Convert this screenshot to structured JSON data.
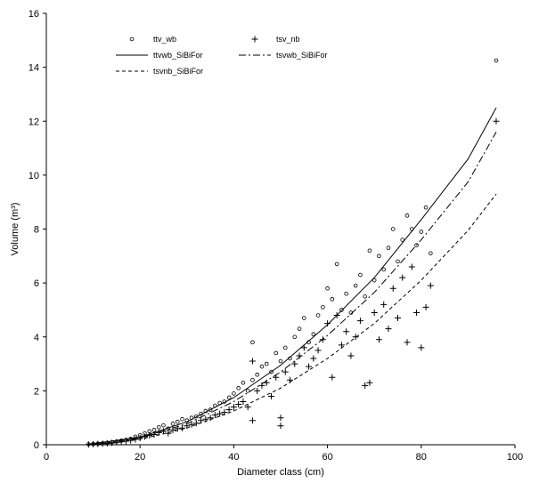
{
  "chart_data": {
    "type": "scatter",
    "xlabel": "Diameter class (cm)",
    "ylabel": "Volume (m³)",
    "xlim": [
      0,
      100
    ],
    "ylim": [
      0,
      16
    ],
    "xticks": [
      0,
      20,
      40,
      60,
      80,
      100
    ],
    "yticks": [
      0,
      2,
      4,
      6,
      8,
      10,
      12,
      14,
      16
    ],
    "grid": false,
    "legend_position": "top-left",
    "series": [
      {
        "name": "ttv_wb",
        "kind": "points",
        "marker": "circle",
        "points": [
          [
            9,
            0.02
          ],
          [
            10,
            0.03
          ],
          [
            11,
            0.04
          ],
          [
            12,
            0.05
          ],
          [
            13,
            0.07
          ],
          [
            14,
            0.09
          ],
          [
            15,
            0.12
          ],
          [
            16,
            0.15
          ],
          [
            17,
            0.18
          ],
          [
            18,
            0.22
          ],
          [
            19,
            0.3
          ],
          [
            20,
            0.35
          ],
          [
            21,
            0.42
          ],
          [
            22,
            0.5
          ],
          [
            23,
            0.55
          ],
          [
            24,
            0.65
          ],
          [
            25,
            0.72
          ],
          [
            26,
            0.6
          ],
          [
            27,
            0.78
          ],
          [
            28,
            0.85
          ],
          [
            29,
            0.95
          ],
          [
            30,
            0.9
          ],
          [
            31,
            1.0
          ],
          [
            32,
            1.05
          ],
          [
            33,
            1.15
          ],
          [
            34,
            1.25
          ],
          [
            35,
            1.3
          ],
          [
            36,
            1.45
          ],
          [
            37,
            1.55
          ],
          [
            38,
            1.6
          ],
          [
            39,
            1.75
          ],
          [
            40,
            1.9
          ],
          [
            41,
            2.1
          ],
          [
            42,
            2.3
          ],
          [
            43,
            2.0
          ],
          [
            44,
            3.8
          ],
          [
            44,
            2.4
          ],
          [
            45,
            2.6
          ],
          [
            46,
            2.9
          ],
          [
            47,
            3.0
          ],
          [
            48,
            2.7
          ],
          [
            49,
            3.4
          ],
          [
            50,
            3.1
          ],
          [
            51,
            3.6
          ],
          [
            52,
            3.2
          ],
          [
            53,
            4.0
          ],
          [
            54,
            4.3
          ],
          [
            55,
            4.7
          ],
          [
            56,
            3.8
          ],
          [
            57,
            4.1
          ],
          [
            58,
            4.8
          ],
          [
            59,
            5.1
          ],
          [
            60,
            5.8
          ],
          [
            61,
            5.4
          ],
          [
            62,
            6.7
          ],
          [
            63,
            5.0
          ],
          [
            64,
            5.6
          ],
          [
            65,
            4.9
          ],
          [
            66,
            5.9
          ],
          [
            67,
            6.3
          ],
          [
            68,
            5.5
          ],
          [
            69,
            7.2
          ],
          [
            70,
            6.1
          ],
          [
            71,
            7.0
          ],
          [
            72,
            6.5
          ],
          [
            73,
            7.3
          ],
          [
            74,
            8.0
          ],
          [
            75,
            6.8
          ],
          [
            76,
            7.6
          ],
          [
            77,
            8.5
          ],
          [
            78,
            8.0
          ],
          [
            79,
            7.4
          ],
          [
            80,
            7.9
          ],
          [
            81,
            8.8
          ],
          [
            82,
            7.1
          ],
          [
            96,
            14.25
          ]
        ]
      },
      {
        "name": "tsv_nb",
        "kind": "points",
        "marker": "plus",
        "points": [
          [
            9,
            0.01
          ],
          [
            10,
            0.02
          ],
          [
            11,
            0.03
          ],
          [
            12,
            0.04
          ],
          [
            13,
            0.05
          ],
          [
            14,
            0.07
          ],
          [
            15,
            0.09
          ],
          [
            16,
            0.11
          ],
          [
            17,
            0.13
          ],
          [
            18,
            0.16
          ],
          [
            19,
            0.2
          ],
          [
            20,
            0.25
          ],
          [
            21,
            0.3
          ],
          [
            22,
            0.35
          ],
          [
            23,
            0.38
          ],
          [
            24,
            0.45
          ],
          [
            25,
            0.5
          ],
          [
            26,
            0.42
          ],
          [
            27,
            0.55
          ],
          [
            28,
            0.6
          ],
          [
            29,
            0.62
          ],
          [
            30,
            0.7
          ],
          [
            31,
            0.75
          ],
          [
            32,
            0.8
          ],
          [
            33,
            0.9
          ],
          [
            34,
            0.95
          ],
          [
            35,
            1.0
          ],
          [
            36,
            1.1
          ],
          [
            37,
            1.15
          ],
          [
            38,
            1.2
          ],
          [
            39,
            1.3
          ],
          [
            40,
            1.4
          ],
          [
            41,
            1.5
          ],
          [
            42,
            1.6
          ],
          [
            43,
            1.4
          ],
          [
            44,
            3.1
          ],
          [
            44,
            0.9
          ],
          [
            45,
            2.0
          ],
          [
            46,
            2.2
          ],
          [
            47,
            2.3
          ],
          [
            48,
            1.8
          ],
          [
            49,
            2.5
          ],
          [
            50,
            0.7
          ],
          [
            50,
            1.0
          ],
          [
            51,
            2.7
          ],
          [
            52,
            2.4
          ],
          [
            53,
            3.0
          ],
          [
            54,
            3.3
          ],
          [
            55,
            3.6
          ],
          [
            56,
            2.9
          ],
          [
            57,
            3.2
          ],
          [
            58,
            3.5
          ],
          [
            59,
            3.9
          ],
          [
            60,
            4.5
          ],
          [
            61,
            2.5
          ],
          [
            62,
            4.8
          ],
          [
            63,
            3.7
          ],
          [
            64,
            4.2
          ],
          [
            65,
            3.3
          ],
          [
            66,
            4.0
          ],
          [
            67,
            4.6
          ],
          [
            68,
            2.2
          ],
          [
            69,
            2.3
          ],
          [
            70,
            4.9
          ],
          [
            71,
            3.9
          ],
          [
            72,
            5.2
          ],
          [
            73,
            4.3
          ],
          [
            74,
            5.8
          ],
          [
            75,
            4.7
          ],
          [
            76,
            6.2
          ],
          [
            77,
            3.8
          ],
          [
            78,
            6.6
          ],
          [
            79,
            4.9
          ],
          [
            80,
            3.6
          ],
          [
            81,
            5.1
          ],
          [
            82,
            5.9
          ],
          [
            96,
            12.0
          ]
        ]
      },
      {
        "name": "ttvwb_SiBiFor",
        "kind": "line",
        "dash": "solid",
        "points": [
          [
            9,
            0.02
          ],
          [
            20,
            0.28
          ],
          [
            30,
            0.85
          ],
          [
            40,
            1.75
          ],
          [
            50,
            2.95
          ],
          [
            60,
            4.45
          ],
          [
            70,
            6.2
          ],
          [
            80,
            8.35
          ],
          [
            90,
            10.6
          ],
          [
            96,
            12.5
          ]
        ]
      },
      {
        "name": "tsvwb_SiBiFor",
        "kind": "line",
        "dash": "dashdot",
        "points": [
          [
            9,
            0.02
          ],
          [
            20,
            0.25
          ],
          [
            30,
            0.78
          ],
          [
            40,
            1.6
          ],
          [
            50,
            2.7
          ],
          [
            60,
            4.05
          ],
          [
            70,
            5.65
          ],
          [
            80,
            7.6
          ],
          [
            90,
            9.75
          ],
          [
            96,
            11.6
          ]
        ]
      },
      {
        "name": "tsvnb_SiBiFor",
        "kind": "line",
        "dash": "dashed",
        "points": [
          [
            9,
            0.01
          ],
          [
            20,
            0.2
          ],
          [
            30,
            0.62
          ],
          [
            40,
            1.25
          ],
          [
            50,
            2.1
          ],
          [
            60,
            3.2
          ],
          [
            70,
            4.5
          ],
          [
            80,
            6.1
          ],
          [
            90,
            7.95
          ],
          [
            96,
            9.3
          ]
        ]
      }
    ]
  }
}
